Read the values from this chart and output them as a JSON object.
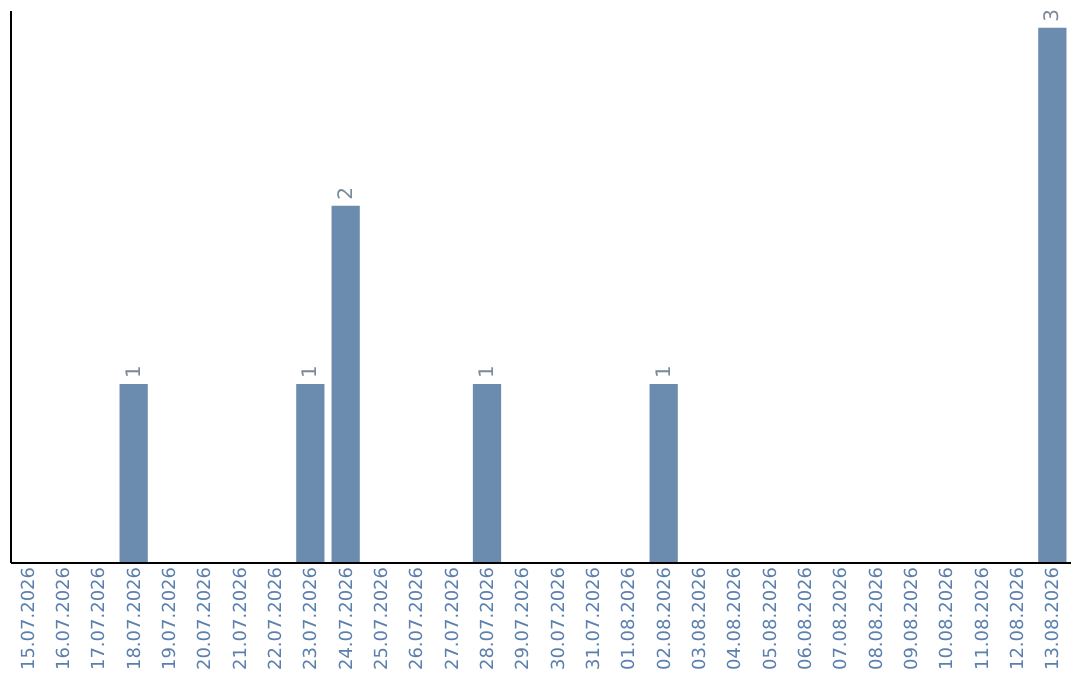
{
  "chart_data": {
    "type": "bar",
    "categories": [
      "15.07.2026",
      "16.07.2026",
      "17.07.2026",
      "18.07.2026",
      "19.07.2026",
      "20.07.2026",
      "21.07.2026",
      "22.07.2026",
      "23.07.2026",
      "24.07.2026",
      "25.07.2026",
      "26.07.2026",
      "27.07.2026",
      "28.07.2026",
      "29.07.2026",
      "30.07.2026",
      "31.07.2026",
      "01.08.2026",
      "02.08.2026",
      "03.08.2026",
      "04.08.2026",
      "05.08.2026",
      "06.08.2026",
      "07.08.2026",
      "08.08.2026",
      "09.08.2026",
      "10.08.2026",
      "11.08.2026",
      "12.08.2026",
      "13.08.2026"
    ],
    "values": [
      0,
      0,
      0,
      1,
      0,
      0,
      0,
      0,
      1,
      2,
      0,
      0,
      0,
      1,
      0,
      0,
      0,
      0,
      1,
      0,
      0,
      0,
      0,
      0,
      0,
      0,
      0,
      0,
      0,
      3
    ],
    "value_labels": [
      null,
      null,
      null,
      "1",
      null,
      null,
      null,
      null,
      "1",
      "2",
      null,
      null,
      null,
      "1",
      null,
      null,
      null,
      null,
      "1",
      null,
      null,
      null,
      null,
      null,
      null,
      null,
      null,
      null,
      null,
      "3"
    ],
    "color": "#6b8caf",
    "ylim": [
      0,
      3.1
    ],
    "tick_labels": "x"
  }
}
